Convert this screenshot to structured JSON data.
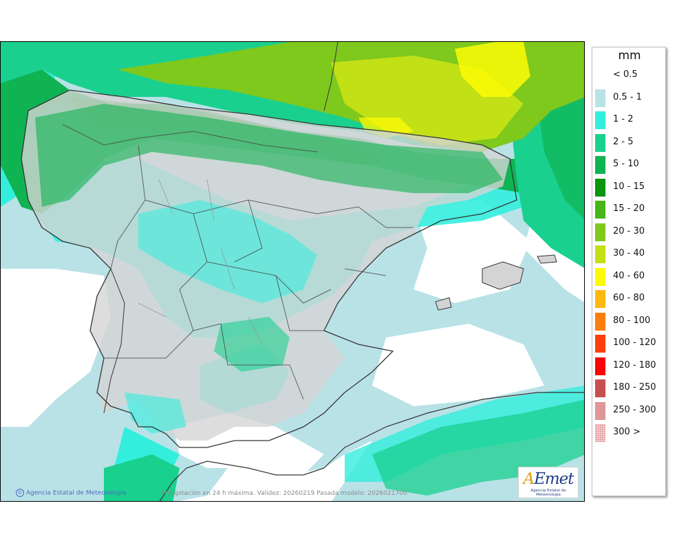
{
  "legend": {
    "unit": "mm",
    "items": [
      {
        "label": "< 0.5",
        "color": "#ffffff"
      },
      {
        "label": "0.5 - 1",
        "color": "#b9e2e7"
      },
      {
        "label": "1 - 2",
        "color": "#33eedd"
      },
      {
        "label": "2 - 5",
        "color": "#1ad08f"
      },
      {
        "label": "5 - 10",
        "color": "#10b352"
      },
      {
        "label": "10 - 15",
        "color": "#0a960e"
      },
      {
        "label": "15 - 20",
        "color": "#48b518"
      },
      {
        "label": "20 - 30",
        "color": "#7fc81c"
      },
      {
        "label": "30 - 40",
        "color": "#c2e016"
      },
      {
        "label": "40 - 60",
        "color": "#fdfb05"
      },
      {
        "label": "60 - 80",
        "color": "#fdb810"
      },
      {
        "label": "80 - 100",
        "color": "#fc7d0c"
      },
      {
        "label": "100 - 120",
        "color": "#fd3e0d"
      },
      {
        "label": "120 - 180",
        "color": "#fb0406"
      },
      {
        "label": "180 - 250",
        "color": "#c84f51"
      },
      {
        "label": "250 - 300",
        "color": "#de9696"
      },
      {
        "label": "300 >",
        "color": "#f3d4d4"
      }
    ]
  },
  "footer": {
    "copyright": "Agencia Estatal de Meteorología",
    "caption": "Precipitación en 24 h máxima. Validez: 20260219 Pasada modelo: 2026021700"
  },
  "logo": {
    "brand_a": "A",
    "brand_rest": "Emet",
    "subtitle": "Agencia Estatal de Meteorología"
  }
}
